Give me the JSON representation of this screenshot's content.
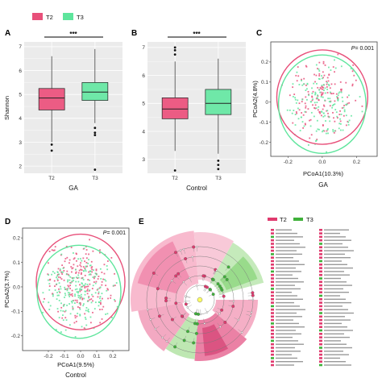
{
  "legend": {
    "entries": [
      {
        "label": "T2",
        "color": "#e8507a"
      },
      {
        "label": "T3",
        "color": "#5ee59c"
      }
    ]
  },
  "colors": {
    "t2": "#e8507a",
    "t3": "#5ee59c",
    "t2_fill": "#ec5c84",
    "t3_fill": "#6fe8a8",
    "panel_bg": "#ebebeb",
    "grid": "#ffffff",
    "clad_t2": "#e03a6e",
    "clad_t3": "#3fb13a"
  },
  "chart_data": [
    {
      "panel": "A",
      "type": "boxplot",
      "ylabel": "Shannon",
      "xlabel": "GA",
      "categories": [
        "T2",
        "T3"
      ],
      "ylim": [
        1.7,
        7.2
      ],
      "yticks": [
        2,
        3,
        4,
        5,
        6,
        7
      ],
      "significance": "***",
      "boxes": [
        {
          "name": "T2",
          "q1": 4.35,
          "median": 4.85,
          "q3": 5.25,
          "whisker_low": 3.0,
          "whisker_high": 6.6,
          "outliers": [
            2.9,
            2.65
          ]
        },
        {
          "name": "T3",
          "q1": 4.75,
          "median": 5.1,
          "q3": 5.5,
          "whisker_low": 3.8,
          "whisker_high": 6.9,
          "outliers": [
            3.6,
            3.4,
            3.3,
            1.85
          ]
        }
      ]
    },
    {
      "panel": "B",
      "type": "boxplot",
      "ylabel": "",
      "xlabel": "Control",
      "categories": [
        "T2",
        "T3"
      ],
      "ylim": [
        2.5,
        7.2
      ],
      "yticks": [
        3,
        4,
        5,
        6,
        7
      ],
      "significance": "***",
      "boxes": [
        {
          "name": "T2",
          "q1": 4.45,
          "median": 4.8,
          "q3": 5.2,
          "whisker_low": 3.3,
          "whisker_high": 6.5,
          "outliers": [
            6.75,
            6.9,
            7.0,
            2.6
          ]
        },
        {
          "name": "T3",
          "q1": 4.6,
          "median": 5.0,
          "q3": 5.5,
          "whisker_low": 3.2,
          "whisker_high": 6.6,
          "outliers": [
            2.95,
            2.8,
            2.65
          ]
        }
      ]
    },
    {
      "panel": "C",
      "type": "scatter",
      "xlabel": "PCoA1(10.3%)",
      "ylabel": "PCoA2(4.8%)",
      "title_below": "GA",
      "pvalue": "= 0.001",
      "pvalue_symbol": "P",
      "xlim": [
        -0.3,
        0.32
      ],
      "ylim": [
        -0.27,
        0.3
      ],
      "xticks": [
        -0.2,
        0.0,
        0.2
      ],
      "yticks": [
        -0.2,
        -0.1,
        0.0,
        0.1,
        0.2
      ],
      "ytick_labels": [
        "-0.2",
        "-0.1",
        "0",
        "0.1",
        "0.2"
      ],
      "ellipses": [
        {
          "name": "T2",
          "cx": 0.0,
          "cy": 0.025,
          "rx": 0.265,
          "ry": 0.235
        },
        {
          "name": "T3",
          "cx": 0.0,
          "cy": -0.01,
          "rx": 0.255,
          "ry": 0.245
        }
      ],
      "point_count_per_series": 150
    },
    {
      "panel": "D",
      "type": "scatter",
      "xlabel": "PCoA1(9.5%)",
      "ylabel": "PCoA2(3.7%)",
      "title_below": "Control",
      "pvalue": "= 0.001",
      "pvalue_symbol": "P",
      "xlim": [
        -0.36,
        0.3
      ],
      "ylim": [
        -0.26,
        0.24
      ],
      "xticks": [
        -0.2,
        -0.1,
        0.0,
        0.1,
        0.2
      ],
      "yticks": [
        -0.2,
        -0.1,
        0.0,
        0.1,
        0.2
      ],
      "ellipses": [
        {
          "name": "T2",
          "cx": 0.0,
          "cy": 0.02,
          "rx": 0.275,
          "ry": 0.195
        },
        {
          "name": "T3",
          "cx": -0.01,
          "cy": -0.02,
          "rx": 0.26,
          "ry": 0.19
        }
      ],
      "point_count_per_series": 200
    },
    {
      "panel": "E",
      "type": "cladogram",
      "legend": [
        "T2",
        "T3"
      ]
    }
  ],
  "panel_letters": [
    "A",
    "B",
    "C",
    "D",
    "E"
  ]
}
